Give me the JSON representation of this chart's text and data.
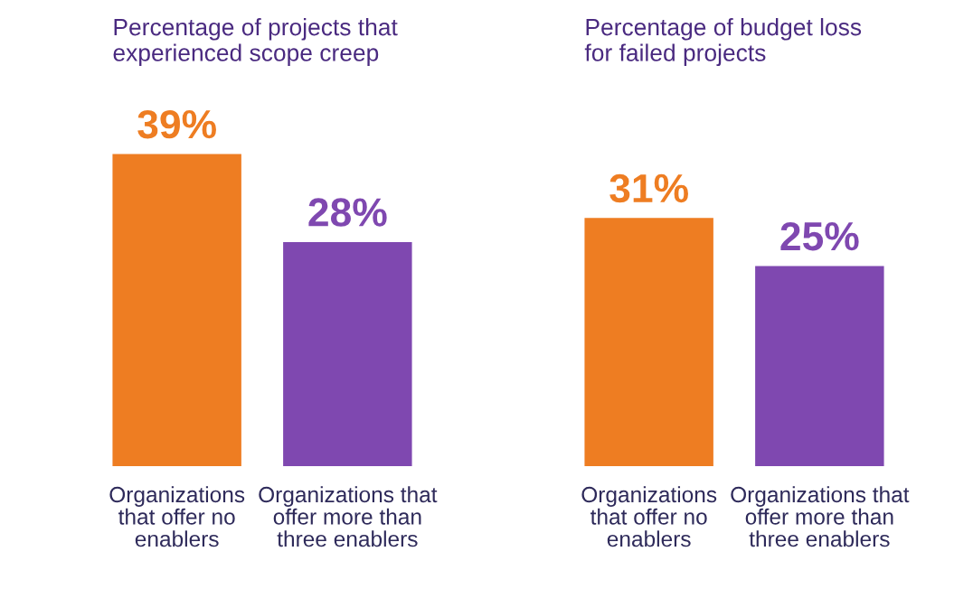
{
  "chart_data": [
    {
      "type": "bar",
      "title": "Percentage of projects that\nexperienced scope creep",
      "categories": [
        "Organizations\nthat offer no\nenablers",
        "Organizations that\noffer more than\nthree enablers"
      ],
      "values": [
        39,
        28
      ],
      "colors": [
        "#ee7d22",
        "#7f48b0"
      ],
      "value_labels": [
        "39%",
        "28%"
      ],
      "tick_labels": "x"
    },
    {
      "type": "bar",
      "title": "Percentage of budget loss\nfor failed projects",
      "categories": [
        "Organizations\nthat offer no\nenablers",
        "Organizations that\noffer more than\nthree enablers"
      ],
      "values": [
        31,
        25
      ],
      "colors": [
        "#ee7d22",
        "#7f48b0"
      ],
      "value_labels": [
        "31%",
        "25%"
      ],
      "tick_labels": "x"
    }
  ]
}
